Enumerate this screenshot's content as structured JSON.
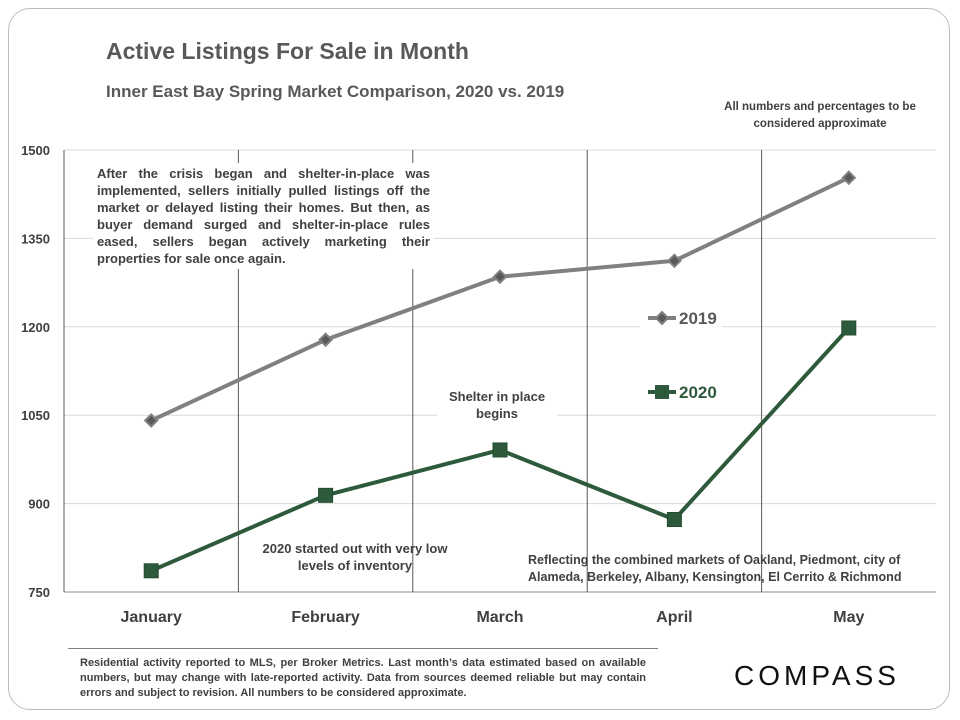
{
  "chart_data": {
    "type": "line",
    "title": "Active Listings For Sale in Month",
    "subtitle": "Inner East Bay Spring Market Comparison,  2020 vs. 2019",
    "categories": [
      "January",
      "February",
      "March",
      "April",
      "May"
    ],
    "ylim": [
      750,
      1500
    ],
    "yticks": [
      "1500",
      "1350",
      "1200",
      "1050",
      "900",
      "750"
    ],
    "series": [
      {
        "name": "2019",
        "values": [
          1041,
          1178,
          1285,
          1312,
          1453
        ],
        "color": "#808080",
        "marker": "diamond"
      },
      {
        "name": "2020",
        "values": [
          786,
          914,
          991,
          873,
          1198
        ],
        "color": "#2e5a3c",
        "marker": "square"
      }
    ],
    "legend_placement": "center-right",
    "grid": "horizontal and vertical"
  },
  "notes": {
    "top_right": "All numbers and percentages to be considered approximate",
    "crisis": "After the crisis began and shelter-in-place was implemented, sellers initially pulled listings off the market or delayed listing their homes. But then, as buyer demand surged and shelter-in-place rules eased, sellers began actively marketing their properties for sale once again.",
    "shelter": "Shelter in place begins",
    "start_2020": "2020 started out with very low levels of inventory",
    "markets": "Reflecting the combined markets of Oakland, Piedmont, city of Alameda, Berkeley, Albany, Kensington, El Cerrito & Richmond"
  },
  "footer": {
    "disclaimer": "Residential activity reported to MLS, per Broker Metrics. Last month’s data estimated based on available numbers, but may change with late-reported activity. Data from sources deemed reliable but may contain errors and subject to revision. All numbers to be considered approximate.",
    "logo": "COMPASS"
  }
}
